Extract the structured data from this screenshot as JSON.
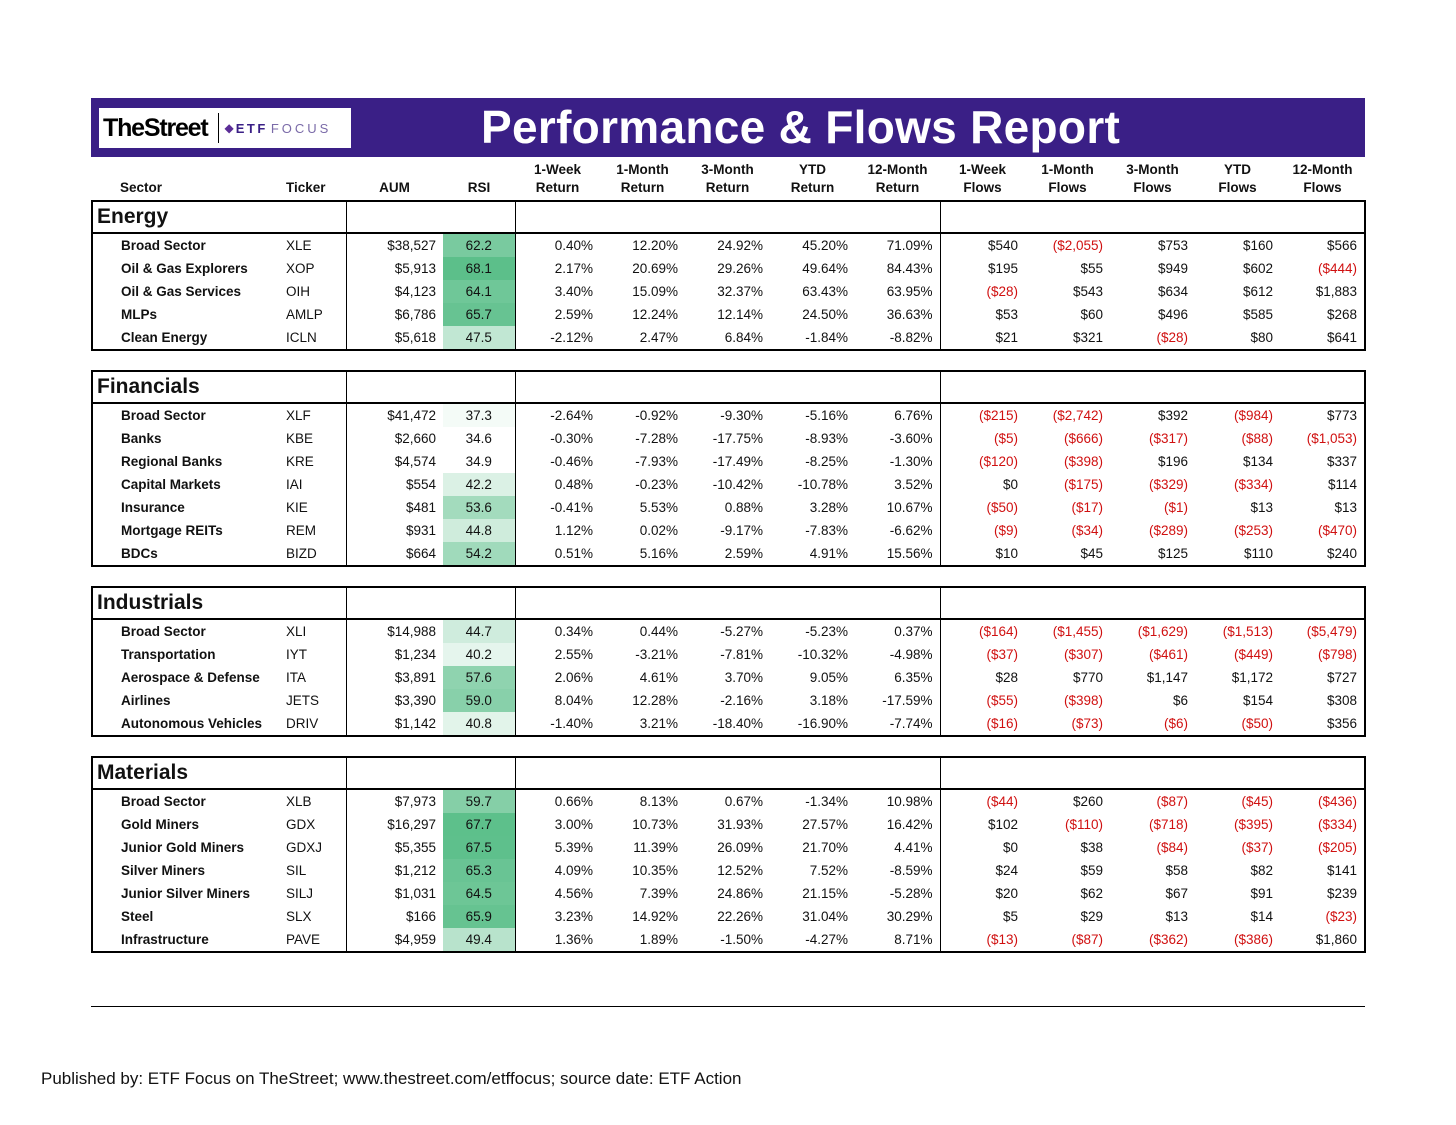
{
  "title": "Performance & Flows Report",
  "logo": {
    "thestreet": "TheStreet",
    "etf": "ETF",
    "focus": "FOCUS"
  },
  "headers": {
    "sector": "Sector",
    "ticker": "Ticker",
    "aum": "AUM",
    "rsi": "RSI",
    "ret_1w": [
      "1-Week",
      "Return"
    ],
    "ret_1m": [
      "1-Month",
      "Return"
    ],
    "ret_3m": [
      "3-Month",
      "Return"
    ],
    "ret_ytd": [
      "YTD",
      "Return"
    ],
    "ret_12m": [
      "12-Month",
      "Return"
    ],
    "flow_1w": [
      "1-Week",
      "Flows"
    ],
    "flow_1m": [
      "1-Month",
      "Flows"
    ],
    "flow_3m": [
      "3-Month",
      "Flows"
    ],
    "flow_ytd": [
      "YTD",
      "Flows"
    ],
    "flow_12m": [
      "12-Month",
      "Flows"
    ]
  },
  "colors": {
    "banner": "#3a1f86",
    "negative": "#d01010",
    "rsi_low": "#ffffff",
    "rsi_high": "#5cbf8a"
  },
  "sections": [
    {
      "name": "Energy",
      "rows": [
        {
          "sector": "Broad Sector",
          "ticker": "XLE",
          "aum": "$38,527",
          "rsi": "62.2",
          "r": [
            "0.40%",
            "12.20%",
            "24.92%",
            "45.20%",
            "71.09%"
          ],
          "f": [
            "$540",
            "($2,055)",
            "$753",
            "$160",
            "$566"
          ]
        },
        {
          "sector": "Oil & Gas Explorers",
          "ticker": "XOP",
          "aum": "$5,913",
          "rsi": "68.1",
          "r": [
            "2.17%",
            "20.69%",
            "29.26%",
            "49.64%",
            "84.43%"
          ],
          "f": [
            "$195",
            "$55",
            "$949",
            "$602",
            "($444)"
          ]
        },
        {
          "sector": "Oil & Gas Services",
          "ticker": "OIH",
          "aum": "$4,123",
          "rsi": "64.1",
          "r": [
            "3.40%",
            "15.09%",
            "32.37%",
            "63.43%",
            "63.95%"
          ],
          "f": [
            "($28)",
            "$543",
            "$634",
            "$612",
            "$1,883"
          ]
        },
        {
          "sector": "MLPs",
          "ticker": "AMLP",
          "aum": "$6,786",
          "rsi": "65.7",
          "r": [
            "2.59%",
            "12.24%",
            "12.14%",
            "24.50%",
            "36.63%"
          ],
          "f": [
            "$53",
            "$60",
            "$496",
            "$585",
            "$268"
          ]
        },
        {
          "sector": "Clean Energy",
          "ticker": "ICLN",
          "aum": "$5,618",
          "rsi": "47.5",
          "r": [
            "-2.12%",
            "2.47%",
            "6.84%",
            "-1.84%",
            "-8.82%"
          ],
          "f": [
            "$21",
            "$321",
            "($28)",
            "$80",
            "$641"
          ]
        }
      ]
    },
    {
      "name": "Financials",
      "rows": [
        {
          "sector": "Broad Sector",
          "ticker": "XLF",
          "aum": "$41,472",
          "rsi": "37.3",
          "r": [
            "-2.64%",
            "-0.92%",
            "-9.30%",
            "-5.16%",
            "6.76%"
          ],
          "f": [
            "($215)",
            "($2,742)",
            "$392",
            "($984)",
            "$773"
          ]
        },
        {
          "sector": "Banks",
          "ticker": "KBE",
          "aum": "$2,660",
          "rsi": "34.6",
          "r": [
            "-0.30%",
            "-7.28%",
            "-17.75%",
            "-8.93%",
            "-3.60%"
          ],
          "f": [
            "($5)",
            "($666)",
            "($317)",
            "($88)",
            "($1,053)"
          ]
        },
        {
          "sector": "Regional Banks",
          "ticker": "KRE",
          "aum": "$4,574",
          "rsi": "34.9",
          "r": [
            "-0.46%",
            "-7.93%",
            "-17.49%",
            "-8.25%",
            "-1.30%"
          ],
          "f": [
            "($120)",
            "($398)",
            "$196",
            "$134",
            "$337"
          ]
        },
        {
          "sector": "Capital Markets",
          "ticker": "IAI",
          "aum": "$554",
          "rsi": "42.2",
          "r": [
            "0.48%",
            "-0.23%",
            "-10.42%",
            "-10.78%",
            "3.52%"
          ],
          "f": [
            "$0",
            "($175)",
            "($329)",
            "($334)",
            "$114"
          ]
        },
        {
          "sector": "Insurance",
          "ticker": "KIE",
          "aum": "$481",
          "rsi": "53.6",
          "r": [
            "-0.41%",
            "5.53%",
            "0.88%",
            "3.28%",
            "10.67%"
          ],
          "f": [
            "($50)",
            "($17)",
            "($1)",
            "$13",
            "$13"
          ]
        },
        {
          "sector": "Mortgage REITs",
          "ticker": "REM",
          "aum": "$931",
          "rsi": "44.8",
          "r": [
            "1.12%",
            "0.02%",
            "-9.17%",
            "-7.83%",
            "-6.62%"
          ],
          "f": [
            "($9)",
            "($34)",
            "($289)",
            "($253)",
            "($470)"
          ]
        },
        {
          "sector": "BDCs",
          "ticker": "BIZD",
          "aum": "$664",
          "rsi": "54.2",
          "r": [
            "0.51%",
            "5.16%",
            "2.59%",
            "4.91%",
            "15.56%"
          ],
          "f": [
            "$10",
            "$45",
            "$125",
            "$110",
            "$240"
          ]
        }
      ]
    },
    {
      "name": "Industrials",
      "rows": [
        {
          "sector": "Broad Sector",
          "ticker": "XLI",
          "aum": "$14,988",
          "rsi": "44.7",
          "r": [
            "0.34%",
            "0.44%",
            "-5.27%",
            "-5.23%",
            "0.37%"
          ],
          "f": [
            "($164)",
            "($1,455)",
            "($1,629)",
            "($1,513)",
            "($5,479)"
          ]
        },
        {
          "sector": "Transportation",
          "ticker": "IYT",
          "aum": "$1,234",
          "rsi": "40.2",
          "r": [
            "2.55%",
            "-3.21%",
            "-7.81%",
            "-10.32%",
            "-4.98%"
          ],
          "f": [
            "($37)",
            "($307)",
            "($461)",
            "($449)",
            "($798)"
          ]
        },
        {
          "sector": "Aerospace & Defense",
          "ticker": "ITA",
          "aum": "$3,891",
          "rsi": "57.6",
          "r": [
            "2.06%",
            "4.61%",
            "3.70%",
            "9.05%",
            "6.35%"
          ],
          "f": [
            "$28",
            "$770",
            "$1,147",
            "$1,172",
            "$727"
          ]
        },
        {
          "sector": "Airlines",
          "ticker": "JETS",
          "aum": "$3,390",
          "rsi": "59.0",
          "r": [
            "8.04%",
            "12.28%",
            "-2.16%",
            "3.18%",
            "-17.59%"
          ],
          "f": [
            "($55)",
            "($398)",
            "$6",
            "$154",
            "$308"
          ]
        },
        {
          "sector": "Autonomous Vehicles",
          "ticker": "DRIV",
          "aum": "$1,142",
          "rsi": "40.8",
          "r": [
            "-1.40%",
            "3.21%",
            "-18.40%",
            "-16.90%",
            "-7.74%"
          ],
          "f": [
            "($16)",
            "($73)",
            "($6)",
            "($50)",
            "$356"
          ]
        }
      ]
    },
    {
      "name": "Materials",
      "rows": [
        {
          "sector": "Broad Sector",
          "ticker": "XLB",
          "aum": "$7,973",
          "rsi": "59.7",
          "r": [
            "0.66%",
            "8.13%",
            "0.67%",
            "-1.34%",
            "10.98%"
          ],
          "f": [
            "($44)",
            "$260",
            "($87)",
            "($45)",
            "($436)"
          ]
        },
        {
          "sector": "Gold Miners",
          "ticker": "GDX",
          "aum": "$16,297",
          "rsi": "67.7",
          "r": [
            "3.00%",
            "10.73%",
            "31.93%",
            "27.57%",
            "16.42%"
          ],
          "f": [
            "$102",
            "($110)",
            "($718)",
            "($395)",
            "($334)"
          ]
        },
        {
          "sector": "Junior Gold Miners",
          "ticker": "GDXJ",
          "aum": "$5,355",
          "rsi": "67.5",
          "r": [
            "5.39%",
            "11.39%",
            "26.09%",
            "21.70%",
            "4.41%"
          ],
          "f": [
            "$0",
            "$38",
            "($84)",
            "($37)",
            "($205)"
          ]
        },
        {
          "sector": "Silver Miners",
          "ticker": "SIL",
          "aum": "$1,212",
          "rsi": "65.3",
          "r": [
            "4.09%",
            "10.35%",
            "12.52%",
            "7.52%",
            "-8.59%"
          ],
          "f": [
            "$24",
            "$59",
            "$58",
            "$82",
            "$141"
          ]
        },
        {
          "sector": "Junior Silver Miners",
          "ticker": "SILJ",
          "aum": "$1,031",
          "rsi": "64.5",
          "r": [
            "4.56%",
            "7.39%",
            "24.86%",
            "21.15%",
            "-5.28%"
          ],
          "f": [
            "$20",
            "$62",
            "$67",
            "$91",
            "$239"
          ]
        },
        {
          "sector": "Steel",
          "ticker": "SLX",
          "aum": "$166",
          "rsi": "65.9",
          "r": [
            "3.23%",
            "14.92%",
            "22.26%",
            "31.04%",
            "30.29%"
          ],
          "f": [
            "$5",
            "$29",
            "$13",
            "$14",
            "($23)"
          ]
        },
        {
          "sector": "Infrastructure",
          "ticker": "PAVE",
          "aum": "$4,959",
          "rsi": "49.4",
          "r": [
            "1.36%",
            "1.89%",
            "-1.50%",
            "-4.27%",
            "8.71%"
          ],
          "f": [
            "($13)",
            "($87)",
            "($362)",
            "($386)",
            "$1,860"
          ]
        }
      ]
    }
  ],
  "footer": "Published by: ETF Focus on TheStreet; www.thestreet.com/etffocus; source date: ETF Action"
}
